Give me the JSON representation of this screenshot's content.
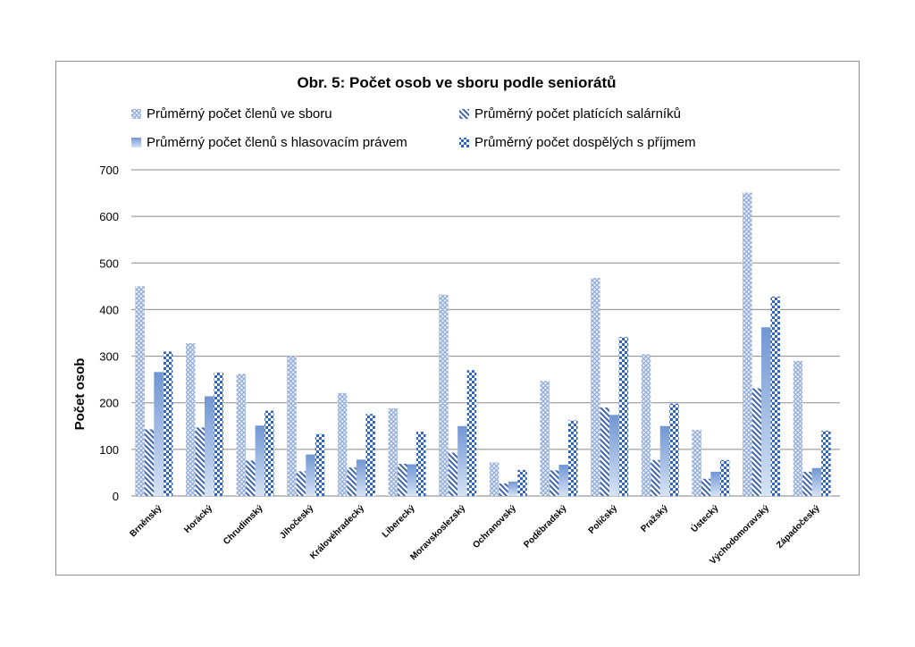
{
  "chart_data": {
    "type": "bar",
    "title": "Obr. 5: Počet osob ve sboru podle seniorátů",
    "ylabel": "Počet osob",
    "xlabel": "",
    "ylim": [
      0,
      700
    ],
    "yticks": [
      0,
      100,
      200,
      300,
      400,
      500,
      600,
      700
    ],
    "grid": true,
    "legend_position": "top",
    "categories": [
      "Brněnský",
      "Horácký",
      "Chrudimský",
      "Jihočeský",
      "Královéhradecký",
      "Liberecký",
      "Moravskoslezský",
      "Ochranovský",
      "Poděbradský",
      "Poličský",
      "Pražský",
      "Ústecký",
      "Východomoravský",
      "Západočeský"
    ],
    "series": [
      {
        "name": "Průměrný počet členů ve sboru",
        "pattern": "crosshatch",
        "color": "#9db4dc",
        "values": [
          450,
          328,
          262,
          300,
          221,
          188,
          432,
          72,
          247,
          468,
          304,
          142,
          651,
          290
        ]
      },
      {
        "name": "Průměrný počet platících salárníků",
        "pattern": "diagonal",
        "color": "#3f66b0",
        "values": [
          143,
          147,
          76,
          53,
          61,
          69,
          93,
          27,
          55,
          190,
          77,
          37,
          231,
          52
        ]
      },
      {
        "name": "Průměrný počet členů s hlasovacím právem",
        "pattern": "gradient",
        "color": "#6f93d1",
        "values": [
          266,
          214,
          151,
          89,
          78,
          68,
          150,
          31,
          67,
          174,
          150,
          52,
          362,
          60
        ]
      },
      {
        "name": "Průměrný počet dospělých s příjmem",
        "pattern": "checker",
        "color": "#2f63c4",
        "values": [
          310,
          265,
          183,
          133,
          176,
          138,
          270,
          56,
          162,
          341,
          198,
          77,
          428,
          140
        ]
      }
    ]
  }
}
